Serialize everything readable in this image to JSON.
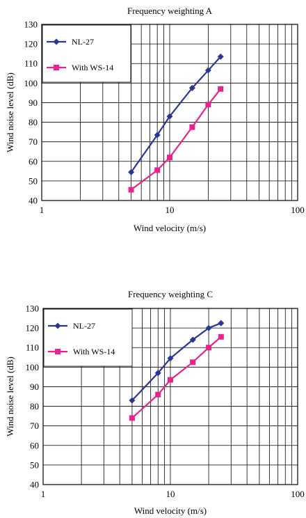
{
  "chart_data": [
    {
      "type": "line",
      "title": "Frequency weighting A",
      "xlabel": "Wind velocity (m/s)",
      "ylabel": "Wind noise level (dB)",
      "xscale": "log",
      "xlim": [
        1,
        100
      ],
      "ylim": [
        40,
        130
      ],
      "xticks": [
        "1",
        "10",
        "100"
      ],
      "yticks": [
        "40",
        "50",
        "60",
        "70",
        "80",
        "90",
        "100",
        "110",
        "120",
        "130"
      ],
      "grid": true,
      "legend_position": "top-left",
      "x": [
        5,
        8,
        10,
        15,
        20,
        25
      ],
      "series": [
        {
          "name": "NL-27",
          "color": "#2a3592",
          "marker": "diamond",
          "values": [
            54.5,
            73.5,
            83,
            97.5,
            106.5,
            113.5
          ]
        },
        {
          "name": "With WS-14",
          "color": "#e8238c",
          "marker": "square",
          "values": [
            45.5,
            55.5,
            62,
            77.5,
            89,
            97
          ]
        }
      ]
    },
    {
      "type": "line",
      "title": "Frequency weighting C",
      "xlabel": "Wind velocity (m/s)",
      "ylabel": "Wind noise level (dB)",
      "xscale": "log",
      "xlim": [
        1,
        100
      ],
      "ylim": [
        40,
        130
      ],
      "xticks": [
        "1",
        "10",
        "100"
      ],
      "yticks": [
        "40",
        "50",
        "60",
        "70",
        "80",
        "90",
        "100",
        "110",
        "120",
        "130"
      ],
      "grid": true,
      "legend_position": "top-left",
      "x": [
        5,
        8,
        10,
        15,
        20,
        25
      ],
      "series": [
        {
          "name": "NL-27",
          "color": "#2a3592",
          "marker": "diamond",
          "values": [
            83,
            97,
            104.5,
            114,
            120,
            122.5
          ]
        },
        {
          "name": "With WS-14",
          "color": "#e8238c",
          "marker": "square",
          "values": [
            74,
            86,
            93.5,
            102.5,
            110,
            115.5
          ]
        }
      ]
    }
  ]
}
